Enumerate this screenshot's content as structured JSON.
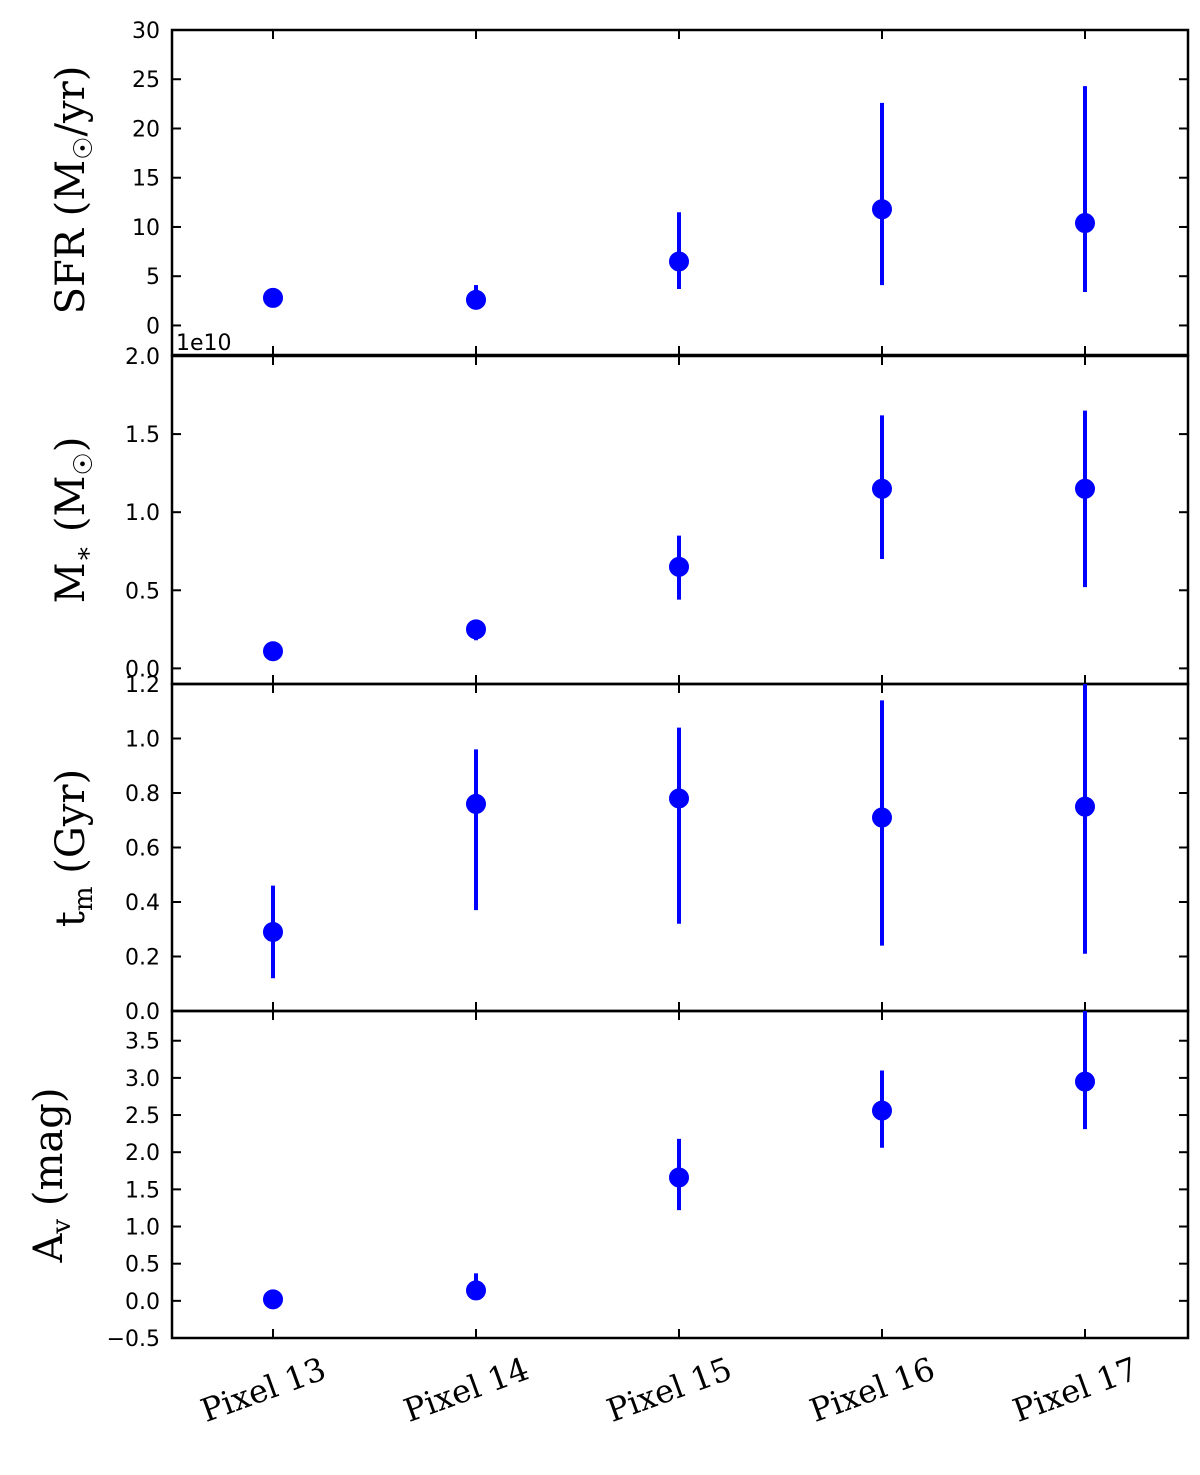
{
  "chart_data": [
    {
      "type": "scatter",
      "ylabel": "SFR (M☉/yr)",
      "ylim": [
        -3,
        30
      ],
      "yticks": [
        0,
        5,
        10,
        15,
        20,
        25,
        30
      ],
      "ytick_labels": [
        "0",
        "5",
        "10",
        "15",
        "20",
        "25",
        "30"
      ],
      "offset_text": "",
      "categories": [
        "Pixel 13",
        "Pixel 14",
        "Pixel 15",
        "Pixel 16",
        "Pixel 17"
      ],
      "values": [
        2.8,
        2.6,
        6.5,
        11.8,
        10.4
      ],
      "err_low": [
        2.3,
        2.2,
        3.7,
        4.1,
        3.4
      ],
      "err_high": [
        3.7,
        4.1,
        11.5,
        22.6,
        24.3
      ],
      "color": "#0000ff",
      "grid": false
    },
    {
      "type": "scatter",
      "ylabel": "M* (M☉)",
      "ylim": [
        -0.1,
        2.0
      ],
      "yticks": [
        0.0,
        0.5,
        1.0,
        1.5,
        2.0
      ],
      "ytick_labels": [
        "0.0",
        "0.5",
        "1.0",
        "1.5",
        "2.0"
      ],
      "offset_text": "1e10",
      "categories": [
        "Pixel 13",
        "Pixel 14",
        "Pixel 15",
        "Pixel 16",
        "Pixel 17"
      ],
      "values": [
        0.11,
        0.25,
        0.65,
        1.15,
        1.15
      ],
      "err_low": [
        0.09,
        0.18,
        0.44,
        0.7,
        0.52
      ],
      "err_high": [
        0.13,
        0.3,
        0.85,
        1.62,
        1.65
      ],
      "color": "#0000ff",
      "grid": false
    },
    {
      "type": "scatter",
      "ylabel": "tm (Gyr)",
      "ylim": [
        0.0,
        1.2
      ],
      "yticks": [
        0.0,
        0.2,
        0.4,
        0.6,
        0.8,
        1.0,
        1.2
      ],
      "ytick_labels": [
        "0.0",
        "0.2",
        "0.4",
        "0.6",
        "0.8",
        "1.0",
        "1.2"
      ],
      "offset_text": "",
      "categories": [
        "Pixel 13",
        "Pixel 14",
        "Pixel 15",
        "Pixel 16",
        "Pixel 17"
      ],
      "values": [
        0.29,
        0.76,
        0.78,
        0.71,
        0.75
      ],
      "err_low": [
        0.12,
        0.37,
        0.32,
        0.24,
        0.21
      ],
      "err_high": [
        0.46,
        0.96,
        1.04,
        1.14,
        1.2
      ],
      "color": "#0000ff",
      "grid": false
    },
    {
      "type": "scatter",
      "ylabel": "Av (mag)",
      "ylim": [
        -0.5,
        3.9
      ],
      "yticks": [
        -0.5,
        0.0,
        0.5,
        1.0,
        1.5,
        2.0,
        2.5,
        3.0,
        3.5
      ],
      "ytick_labels": [
        "−0.5",
        "0.0",
        "0.5",
        "1.0",
        "1.5",
        "2.0",
        "2.5",
        "3.0",
        "3.5"
      ],
      "offset_text": "",
      "categories": [
        "Pixel 13",
        "Pixel 14",
        "Pixel 15",
        "Pixel 16",
        "Pixel 17"
      ],
      "values": [
        0.02,
        0.14,
        1.66,
        2.56,
        2.95
      ],
      "err_low": [
        -0.02,
        0.05,
        1.22,
        2.06,
        2.31
      ],
      "err_high": [
        0.08,
        0.37,
        2.18,
        3.1,
        3.9
      ],
      "color": "#0000ff",
      "grid": false
    }
  ]
}
